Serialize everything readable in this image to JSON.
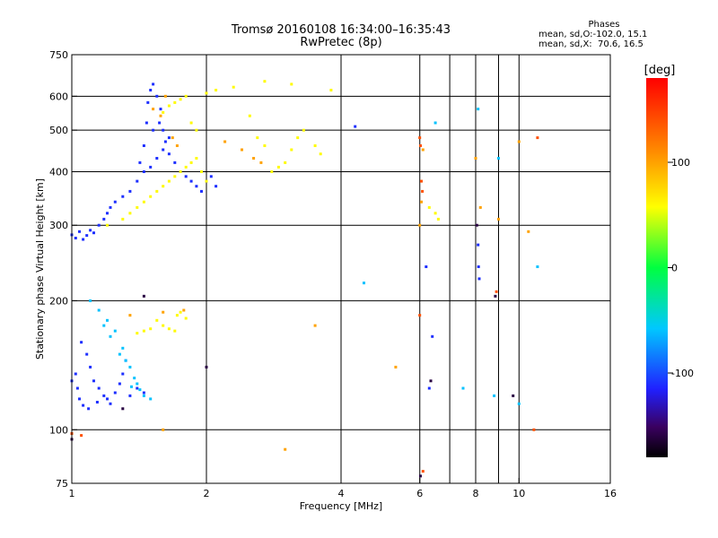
{
  "header": {
    "title_line1": "Tromsø 20160108 16:34:00–16:35:43",
    "title_line2": "RwPretec (8p)"
  },
  "phase_stats": {
    "title": "Phases",
    "o_line": "mean, sd,O:-102.0, 15.1",
    "x_line": "mean, sd,X:  70.6, 16.5"
  },
  "colorbar": {
    "unit_label": "[deg]",
    "min": -180,
    "max": 180,
    "ticks": [
      {
        "value": 100,
        "label": "100"
      },
      {
        "value": 0,
        "label": "0"
      },
      {
        "value": -100,
        "label": "-100"
      }
    ]
  },
  "chart_data": {
    "type": "scatter",
    "xlabel": "Frequency [MHz]",
    "ylabel": "Stationary phase Virtual Height [km]",
    "x_scale": "log",
    "y_scale": "log",
    "xlim": [
      1,
      16
    ],
    "ylim": [
      75,
      750
    ],
    "grid": true,
    "x_ticks": [
      {
        "value": 1,
        "label": "1"
      },
      {
        "value": 2,
        "label": "2"
      },
      {
        "value": 4,
        "label": "4"
      },
      {
        "value": 6,
        "label": "6"
      },
      {
        "value": 8,
        "label": "8"
      },
      {
        "value": 10,
        "label": "10"
      },
      {
        "value": 16,
        "label": "16"
      }
    ],
    "y_ticks": [
      {
        "value": 75,
        "label": "75"
      },
      {
        "value": 100,
        "label": "100"
      },
      {
        "value": 200,
        "label": "200"
      },
      {
        "value": 300,
        "label": "300"
      },
      {
        "value": 400,
        "label": "400"
      },
      {
        "value": 500,
        "label": "500"
      },
      {
        "value": 600,
        "label": "600"
      },
      {
        "value": 750,
        "label": "750"
      }
    ],
    "x_gridlines": [
      2,
      4,
      6,
      7,
      8,
      9,
      10
    ],
    "y_gridlines": [
      100,
      200,
      300,
      400,
      500,
      600
    ],
    "series": [
      {
        "mode": "O",
        "phase_deg": -110,
        "points": [
          [
            1.0,
            285
          ],
          [
            1.02,
            280
          ],
          [
            1.04,
            290
          ],
          [
            1.06,
            278
          ],
          [
            1.08,
            284
          ],
          [
            1.1,
            292
          ],
          [
            1.12,
            288
          ],
          [
            1.15,
            300
          ],
          [
            1.18,
            310
          ],
          [
            1.2,
            320
          ],
          [
            1.22,
            330
          ],
          [
            1.25,
            340
          ],
          [
            1.3,
            350
          ],
          [
            1.35,
            360
          ],
          [
            1.4,
            380
          ],
          [
            1.42,
            420
          ],
          [
            1.45,
            460
          ],
          [
            1.47,
            520
          ],
          [
            1.48,
            580
          ],
          [
            1.5,
            620
          ],
          [
            1.52,
            640
          ],
          [
            1.55,
            600
          ],
          [
            1.58,
            560
          ],
          [
            1.6,
            500
          ],
          [
            1.62,
            470
          ],
          [
            1.65,
            440
          ],
          [
            1.7,
            420
          ],
          [
            1.75,
            400
          ],
          [
            1.8,
            390
          ],
          [
            1.85,
            380
          ],
          [
            1.9,
            370
          ],
          [
            1.95,
            360
          ],
          [
            2.0,
            380
          ],
          [
            2.05,
            390
          ],
          [
            2.1,
            370
          ],
          [
            1.45,
            400
          ],
          [
            1.5,
            410
          ],
          [
            1.55,
            430
          ],
          [
            1.6,
            450
          ],
          [
            1.65,
            480
          ],
          [
            1.52,
            500
          ],
          [
            1.57,
            520
          ],
          [
            1.05,
            160
          ],
          [
            1.08,
            150
          ],
          [
            1.1,
            140
          ],
          [
            1.12,
            130
          ],
          [
            1.15,
            125
          ],
          [
            1.18,
            120
          ],
          [
            1.2,
            118
          ],
          [
            1.22,
            115
          ],
          [
            1.25,
            122
          ],
          [
            1.28,
            128
          ],
          [
            1.3,
            135
          ],
          [
            1.02,
            135
          ],
          [
            1.03,
            125
          ],
          [
            1.04,
            118
          ],
          [
            1.06,
            114
          ],
          [
            1.09,
            112
          ],
          [
            1.14,
            116
          ],
          [
            1.0,
            130
          ],
          [
            1.32,
            145
          ],
          [
            1.35,
            120
          ],
          [
            1.4,
            125
          ],
          [
            1.45,
            122
          ],
          [
            4.3,
            510
          ],
          [
            6.2,
            240
          ],
          [
            6.3,
            125
          ],
          [
            6.4,
            165
          ],
          [
            8.1,
            270
          ],
          [
            8.12,
            240
          ],
          [
            8.15,
            225
          ]
        ]
      },
      {
        "mode": "O-cyan",
        "phase_deg": -60,
        "points": [
          [
            1.15,
            190
          ],
          [
            1.2,
            180
          ],
          [
            1.25,
            170
          ],
          [
            1.3,
            155
          ],
          [
            1.32,
            145
          ],
          [
            1.35,
            140
          ],
          [
            1.38,
            132
          ],
          [
            1.4,
            128
          ],
          [
            1.45,
            120
          ],
          [
            1.5,
            118
          ],
          [
            1.22,
            165
          ],
          [
            1.28,
            150
          ],
          [
            1.1,
            200
          ],
          [
            1.18,
            175
          ],
          [
            1.36,
            126
          ],
          [
            1.42,
            124
          ],
          [
            4.5,
            220
          ],
          [
            6.5,
            520
          ],
          [
            7.5,
            125
          ],
          [
            8.8,
            120
          ],
          [
            9.0,
            430
          ],
          [
            8.1,
            560
          ],
          [
            10.0,
            115
          ],
          [
            11.0,
            240
          ]
        ]
      },
      {
        "mode": "X",
        "phase_deg": 60,
        "points": [
          [
            1.2,
            300
          ],
          [
            1.3,
            310
          ],
          [
            1.35,
            320
          ],
          [
            1.4,
            330
          ],
          [
            1.45,
            340
          ],
          [
            1.5,
            350
          ],
          [
            1.55,
            360
          ],
          [
            1.6,
            370
          ],
          [
            1.65,
            380
          ],
          [
            1.7,
            390
          ],
          [
            1.75,
            400
          ],
          [
            1.8,
            410
          ],
          [
            1.85,
            420
          ],
          [
            1.9,
            430
          ],
          [
            1.95,
            400
          ],
          [
            2.0,
            380
          ],
          [
            1.6,
            550
          ],
          [
            1.65,
            570
          ],
          [
            1.7,
            580
          ],
          [
            1.75,
            590
          ],
          [
            1.8,
            600
          ],
          [
            1.85,
            520
          ],
          [
            1.9,
            500
          ],
          [
            2.0,
            610
          ],
          [
            2.1,
            620
          ],
          [
            2.3,
            630
          ],
          [
            2.5,
            540
          ],
          [
            2.6,
            480
          ],
          [
            2.7,
            460
          ],
          [
            2.8,
            400
          ],
          [
            2.9,
            410
          ],
          [
            3.0,
            420
          ],
          [
            3.1,
            450
          ],
          [
            3.2,
            480
          ],
          [
            3.3,
            500
          ],
          [
            3.5,
            460
          ],
          [
            3.6,
            440
          ],
          [
            3.8,
            620
          ],
          [
            3.1,
            640
          ],
          [
            2.7,
            650
          ],
          [
            1.55,
            180
          ],
          [
            1.6,
            175
          ],
          [
            1.65,
            172
          ],
          [
            1.7,
            170
          ],
          [
            1.72,
            185
          ],
          [
            1.75,
            188
          ],
          [
            1.8,
            182
          ],
          [
            1.5,
            172
          ],
          [
            1.45,
            170
          ],
          [
            1.4,
            168
          ],
          [
            6.6,
            310
          ],
          [
            6.5,
            320
          ],
          [
            6.3,
            330
          ]
        ]
      },
      {
        "mode": "X-yellow",
        "phase_deg": 100,
        "points": [
          [
            1.52,
            560
          ],
          [
            1.58,
            540
          ],
          [
            1.62,
            600
          ],
          [
            1.68,
            480
          ],
          [
            1.72,
            460
          ],
          [
            2.2,
            470
          ],
          [
            2.4,
            450
          ],
          [
            2.55,
            430
          ],
          [
            2.65,
            420
          ],
          [
            1.35,
            185
          ],
          [
            1.6,
            188
          ],
          [
            1.78,
            190
          ],
          [
            3.5,
            175
          ],
          [
            5.3,
            140
          ],
          [
            6.0,
            300
          ],
          [
            6.05,
            340
          ],
          [
            6.1,
            450
          ],
          [
            8.0,
            430
          ],
          [
            8.2,
            330
          ],
          [
            9.0,
            310
          ],
          [
            10.0,
            470
          ],
          [
            10.5,
            290
          ],
          [
            3.0,
            90
          ],
          [
            1.6,
            100
          ]
        ]
      },
      {
        "mode": "X-orange",
        "phase_deg": 140,
        "points": [
          [
            6.0,
            480
          ],
          [
            6.02,
            460
          ],
          [
            6.05,
            380
          ],
          [
            6.08,
            360
          ],
          [
            6.0,
            185
          ],
          [
            6.1,
            80
          ],
          [
            1.05,
            97
          ],
          [
            1.0,
            98
          ],
          [
            10.8,
            100
          ],
          [
            11.0,
            480
          ],
          [
            8.9,
            210
          ]
        ]
      },
      {
        "mode": "O-purple",
        "phase_deg": -160,
        "points": [
          [
            1.0,
            95
          ],
          [
            1.3,
            112
          ],
          [
            1.45,
            205
          ],
          [
            2.0,
            140
          ],
          [
            6.02,
            78
          ],
          [
            8.05,
            300
          ],
          [
            8.85,
            205
          ],
          [
            9.7,
            120
          ],
          [
            6.35,
            130
          ]
        ]
      }
    ]
  }
}
